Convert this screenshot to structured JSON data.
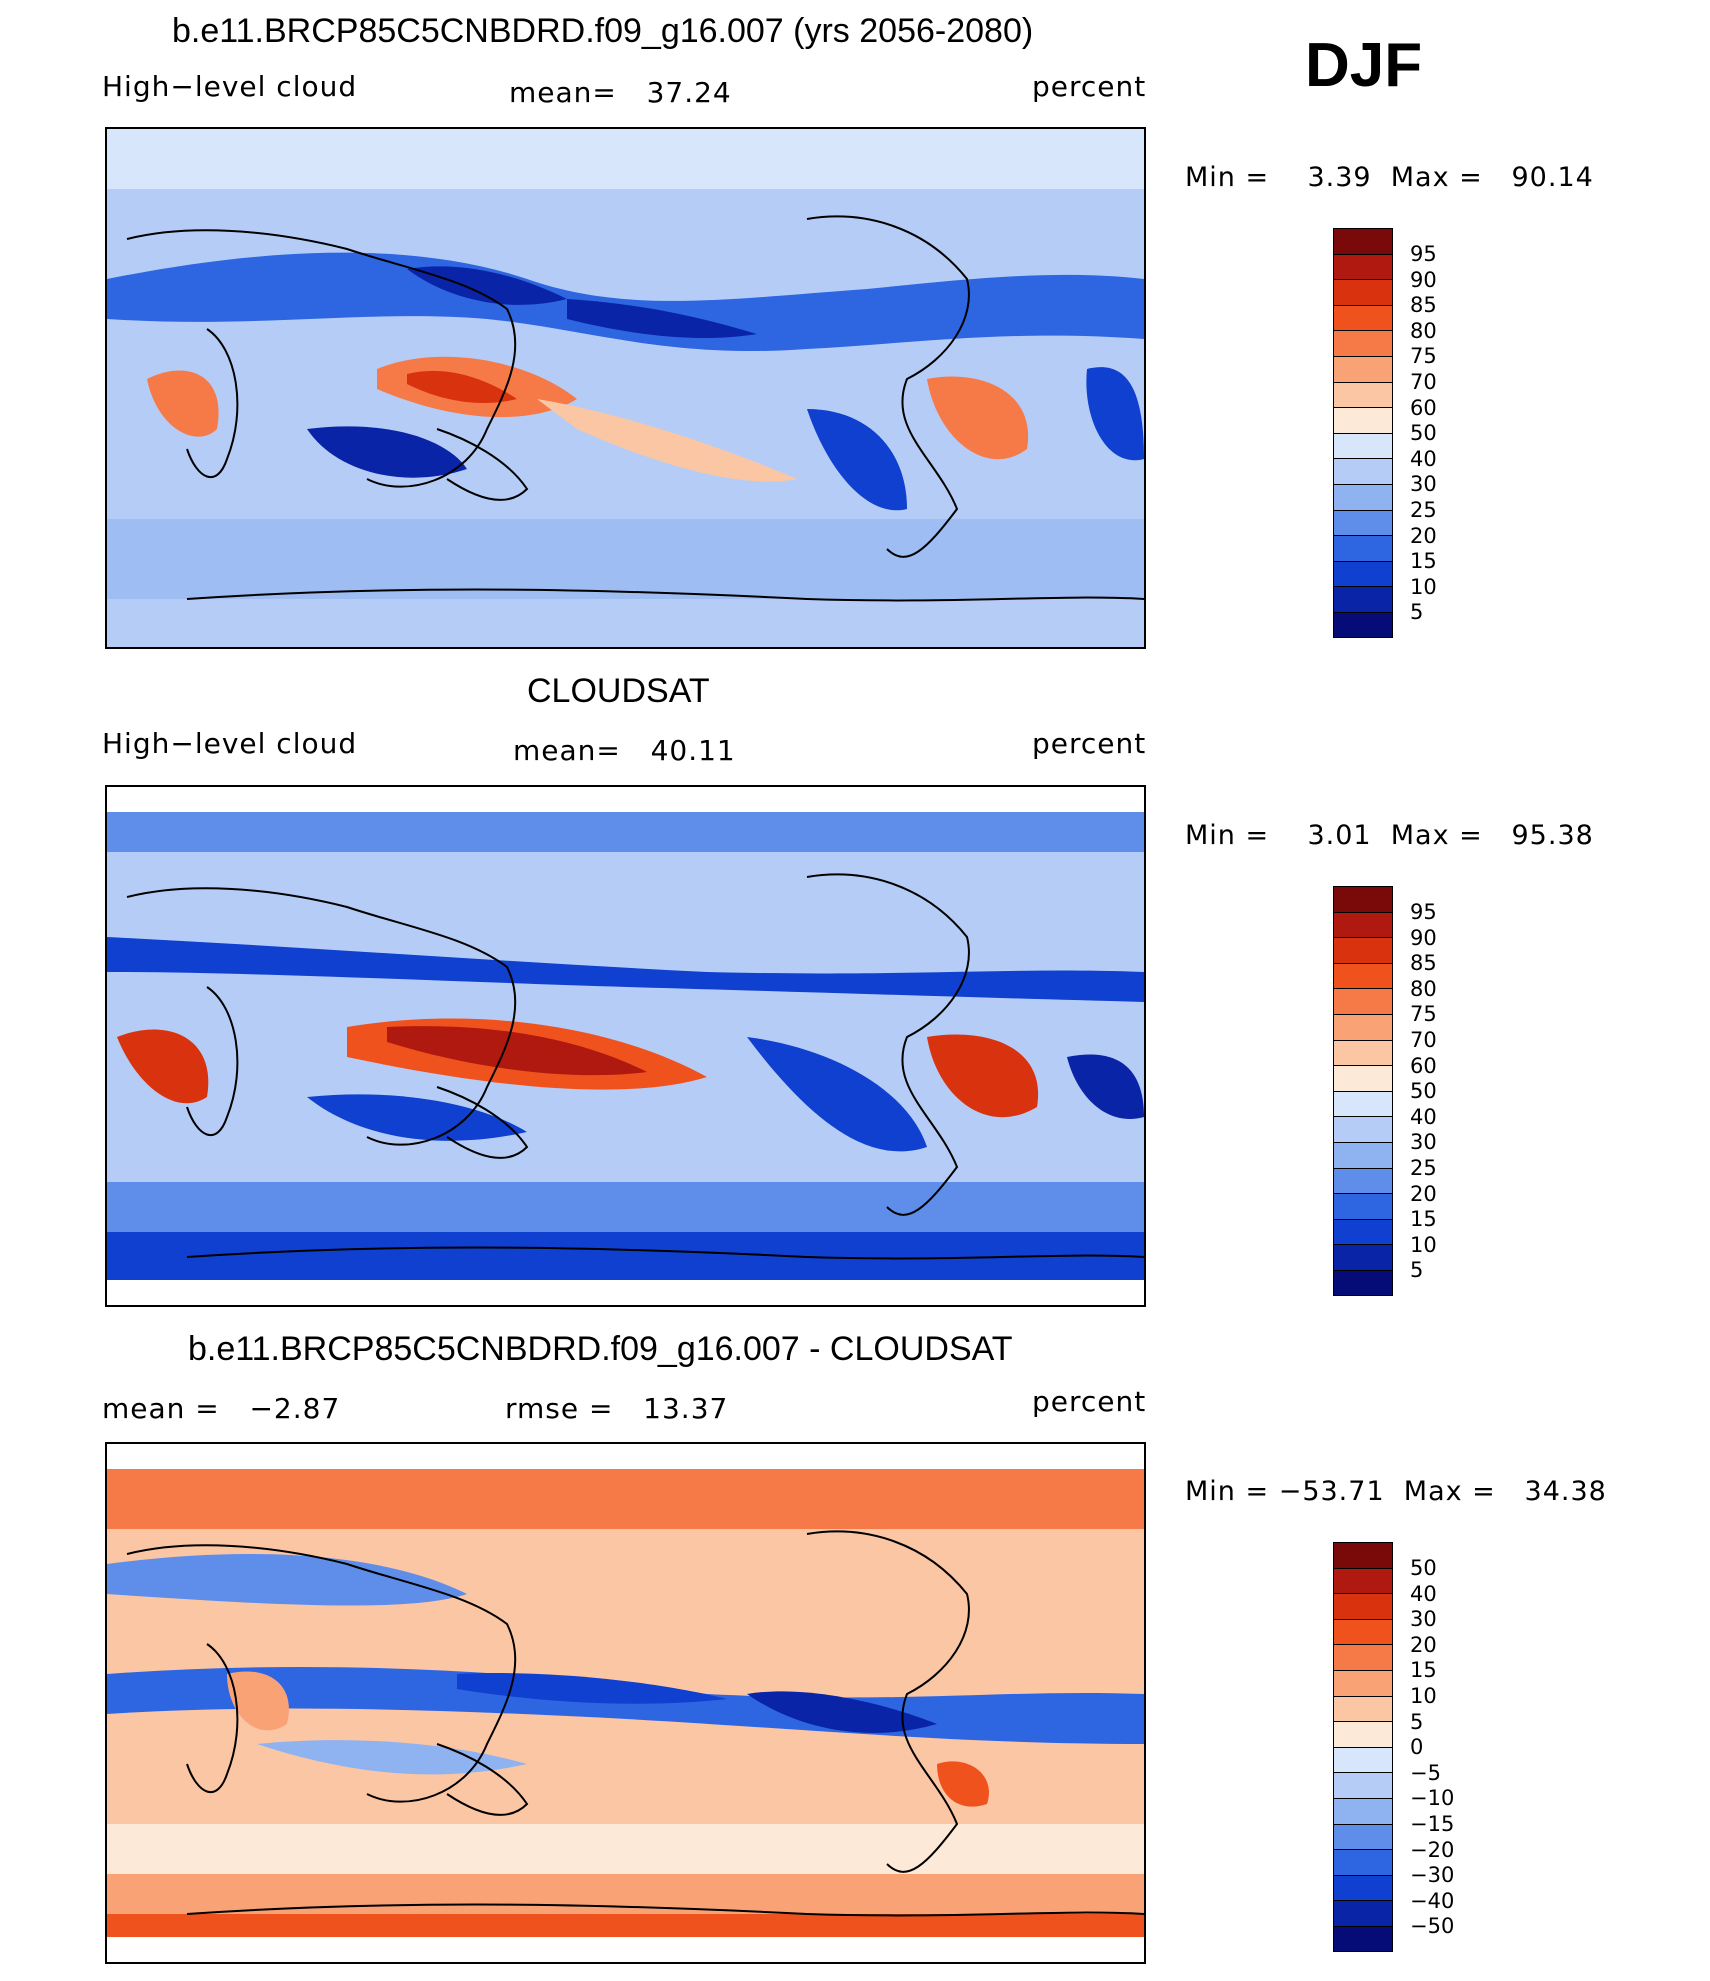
{
  "season": "DJF",
  "panels": [
    {
      "title": "b.e11.BRCP85C5CNBDRD.f09_g16.007 (yrs 2056-2080)",
      "left_label": "High−level cloud",
      "mid_label": "mean=   37.24",
      "right_label": "percent",
      "minmax": "Min =    3.39  Max =   90.14",
      "levels": [
        "95",
        "90",
        "85",
        "80",
        "75",
        "70",
        "60",
        "50",
        "40",
        "30",
        "25",
        "20",
        "15",
        "10",
        "5"
      ]
    },
    {
      "title": "CLOUDSAT",
      "left_label": "High−level cloud",
      "mid_label": "mean=   40.11",
      "right_label": "percent",
      "minmax": "Min =    3.01  Max =   95.38",
      "levels": [
        "95",
        "90",
        "85",
        "80",
        "75",
        "70",
        "60",
        "50",
        "40",
        "30",
        "25",
        "20",
        "15",
        "10",
        "5"
      ]
    },
    {
      "title": "b.e11.BRCP85C5CNBDRD.f09_g16.007 - CLOUDSAT",
      "left_label": "mean =   −2.87",
      "mid_label": "rmse =   13.37",
      "right_label": "percent",
      "minmax": "Min = −53.71  Max =   34.38",
      "levels": [
        "50",
        "40",
        "30",
        "20",
        "15",
        "10",
        "5",
        "0",
        "−5",
        "−10",
        "−15",
        "−20",
        "−30",
        "−40",
        "−50"
      ]
    }
  ],
  "colors": [
    "#7a0a0a",
    "#b0190f",
    "#d8320f",
    "#f0521e",
    "#f67a47",
    "#f9a276",
    "#fbc6a4",
    "#fde9d8",
    "#d8e6fb",
    "#b5cdf6",
    "#8fb2f1",
    "#5e8eea",
    "#2e66e2",
    "#1040cf",
    "#0a24a8",
    "#050c78"
  ],
  "chart_data": [
    {
      "type": "heatmap",
      "title": "b.e11.BRCP85C5CNBDRD.f09_g16.007 (yrs 2056-2080)",
      "variable": "High−level cloud",
      "units": "percent",
      "mean": 37.24,
      "min": 3.39,
      "max": 90.14,
      "contour_levels": [
        5,
        10,
        15,
        20,
        25,
        30,
        40,
        50,
        60,
        70,
        75,
        80,
        85,
        90,
        95
      ],
      "projection": "global cylindrical, centered on Pacific"
    },
    {
      "type": "heatmap",
      "title": "CLOUDSAT",
      "variable": "High−level cloud",
      "units": "percent",
      "mean": 40.11,
      "min": 3.01,
      "max": 95.38,
      "contour_levels": [
        5,
        10,
        15,
        20,
        25,
        30,
        40,
        50,
        60,
        70,
        75,
        80,
        85,
        90,
        95
      ]
    },
    {
      "type": "heatmap",
      "title": "b.e11.BRCP85C5CNBDRD.f09_g16.007 - CLOUDSAT",
      "units": "percent",
      "mean": -2.87,
      "rmse": 13.37,
      "min": -53.71,
      "max": 34.38,
      "contour_levels": [
        -50,
        -40,
        -30,
        -20,
        -15,
        -10,
        -5,
        0,
        5,
        10,
        15,
        20,
        30,
        40,
        50
      ]
    }
  ]
}
